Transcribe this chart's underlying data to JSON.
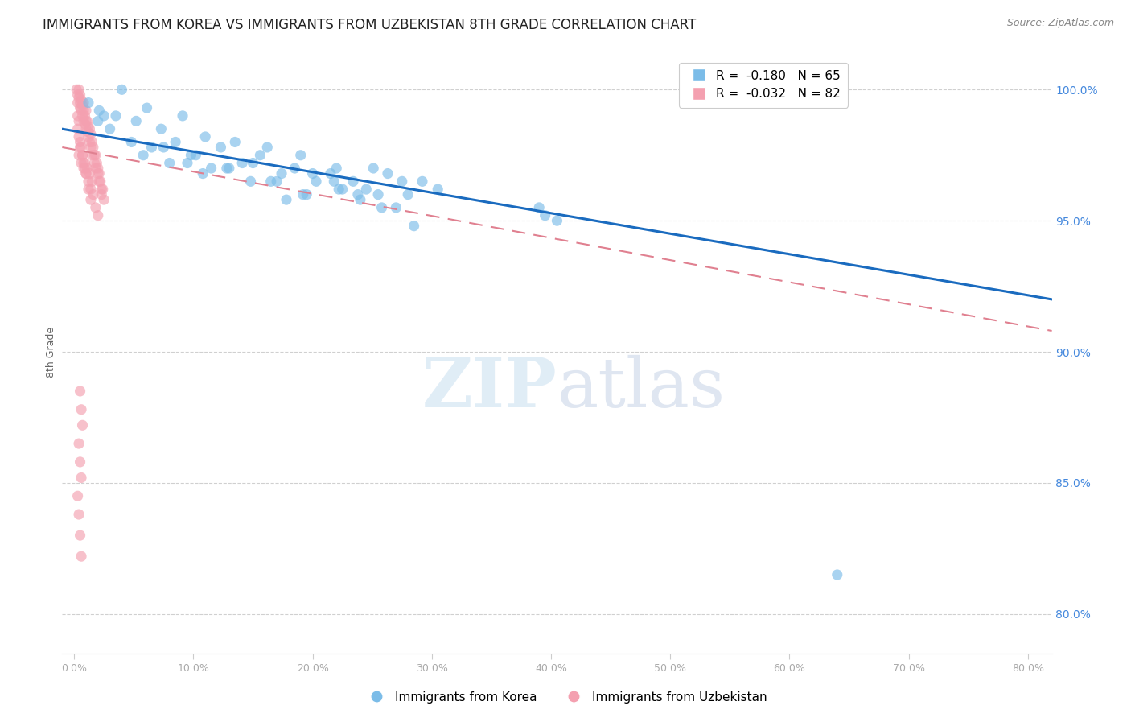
{
  "title": "IMMIGRANTS FROM KOREA VS IMMIGRANTS FROM UZBEKISTAN 8TH GRADE CORRELATION CHART",
  "source": "Source: ZipAtlas.com",
  "ylabel_left": "8th Grade",
  "ylabel_right_ticks": [
    80.0,
    85.0,
    90.0,
    95.0,
    100.0
  ],
  "xlabel_bottom_ticks": [
    0.0,
    10.0,
    20.0,
    30.0,
    40.0,
    50.0,
    60.0,
    70.0,
    80.0
  ],
  "xlim": [
    -1.0,
    82.0
  ],
  "ylim": [
    78.5,
    101.5
  ],
  "korea_color": "#7bbce8",
  "uzbekistan_color": "#f4a0b0",
  "korea_R": -0.18,
  "korea_N": 65,
  "uzbekistan_R": -0.032,
  "uzbekistan_N": 82,
  "korea_line_color": "#1a6bbf",
  "uzbekistan_line_color": "#e08090",
  "legend_label_korea": "Immigrants from Korea",
  "legend_label_uzbekistan": "Immigrants from Uzbekistan",
  "korea_scatter_x": [
    1.2,
    2.1,
    3.5,
    4.0,
    5.2,
    6.1,
    7.3,
    8.5,
    9.1,
    10.2,
    11.0,
    12.3,
    13.5,
    14.1,
    15.6,
    16.2,
    17.4,
    18.5,
    19.0,
    20.3,
    21.5,
    22.0,
    23.4,
    24.5,
    25.1,
    26.3,
    27.5,
    28.0,
    29.2,
    30.5,
    3.0,
    5.8,
    8.0,
    10.8,
    12.8,
    14.8,
    17.0,
    19.5,
    21.8,
    23.8,
    2.5,
    4.8,
    7.5,
    9.8,
    11.5,
    16.5,
    20.0,
    22.5,
    25.5,
    27.0,
    2.0,
    6.5,
    9.5,
    13.0,
    17.8,
    39.5,
    39.0,
    40.5,
    22.2,
    24.0,
    15.0,
    19.2,
    25.8,
    64.0,
    28.5
  ],
  "korea_scatter_y": [
    99.5,
    99.2,
    99.0,
    100.0,
    98.8,
    99.3,
    98.5,
    98.0,
    99.0,
    97.5,
    98.2,
    97.8,
    98.0,
    97.2,
    97.5,
    97.8,
    96.8,
    97.0,
    97.5,
    96.5,
    96.8,
    97.0,
    96.5,
    96.2,
    97.0,
    96.8,
    96.5,
    96.0,
    96.5,
    96.2,
    98.5,
    97.5,
    97.2,
    96.8,
    97.0,
    96.5,
    96.5,
    96.0,
    96.5,
    96.0,
    99.0,
    98.0,
    97.8,
    97.5,
    97.0,
    96.5,
    96.8,
    96.2,
    96.0,
    95.5,
    98.8,
    97.8,
    97.2,
    97.0,
    95.8,
    95.2,
    95.5,
    95.0,
    96.2,
    95.8,
    97.2,
    96.0,
    95.5,
    81.5,
    94.8
  ],
  "uzbekistan_scatter_x": [
    0.2,
    0.3,
    0.3,
    0.4,
    0.4,
    0.5,
    0.5,
    0.5,
    0.6,
    0.6,
    0.7,
    0.7,
    0.8,
    0.8,
    0.8,
    0.9,
    0.9,
    1.0,
    1.0,
    1.0,
    1.1,
    1.1,
    1.2,
    1.2,
    1.3,
    1.3,
    1.4,
    1.4,
    1.5,
    1.5,
    1.6,
    1.7,
    1.7,
    1.8,
    1.8,
    1.9,
    2.0,
    2.0,
    2.1,
    2.1,
    2.2,
    2.3,
    2.3,
    2.4,
    2.5,
    0.4,
    0.5,
    0.6,
    0.7,
    0.8,
    0.9,
    1.0,
    1.1,
    1.2,
    1.3,
    1.4,
    1.5,
    1.6,
    1.8,
    2.0,
    0.3,
    0.4,
    0.5,
    0.6,
    0.7,
    0.8,
    0.9,
    1.0,
    1.2,
    1.4,
    0.3,
    0.4,
    0.5,
    0.6,
    0.7,
    0.4,
    0.5,
    0.6,
    0.3,
    0.4,
    0.5,
    0.6
  ],
  "uzbekistan_scatter_y": [
    100.0,
    99.8,
    99.5,
    100.0,
    99.7,
    99.8,
    99.5,
    99.3,
    99.6,
    99.2,
    99.4,
    99.0,
    99.5,
    99.2,
    98.8,
    99.0,
    98.7,
    99.2,
    98.8,
    98.5,
    98.8,
    98.4,
    98.6,
    98.2,
    98.5,
    98.0,
    98.3,
    97.8,
    98.0,
    97.5,
    97.8,
    97.5,
    97.2,
    97.5,
    97.0,
    97.2,
    97.0,
    96.8,
    96.8,
    96.5,
    96.5,
    96.2,
    96.0,
    96.2,
    95.8,
    97.5,
    97.8,
    97.2,
    97.5,
    97.0,
    97.2,
    96.8,
    97.0,
    96.5,
    96.8,
    96.2,
    96.5,
    96.0,
    95.5,
    95.2,
    98.5,
    98.2,
    98.0,
    97.8,
    97.5,
    97.2,
    97.0,
    96.8,
    96.2,
    95.8,
    99.0,
    98.8,
    88.5,
    87.8,
    87.2,
    86.5,
    85.8,
    85.2,
    84.5,
    83.8,
    83.0,
    82.2
  ],
  "watermark_zip": "ZIP",
  "watermark_atlas": "atlas",
  "background_color": "#ffffff",
  "grid_color": "#d0d0d0",
  "title_fontsize": 12,
  "axis_label_fontsize": 9,
  "tick_fontsize": 9,
  "legend_fontsize": 11,
  "right_axis_color": "#4488dd",
  "source_color": "#888888"
}
